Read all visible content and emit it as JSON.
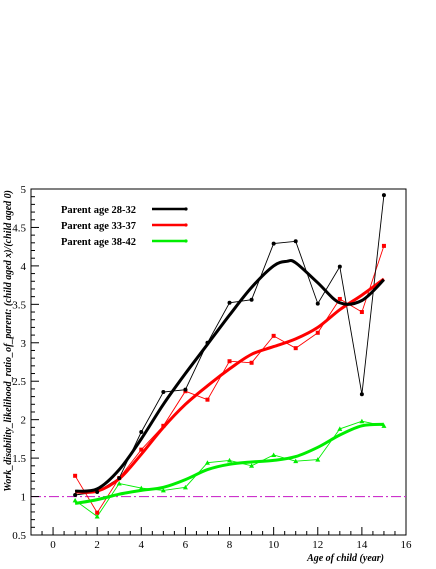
{
  "chart_data": {
    "type": "line",
    "title": "",
    "xlabel": "Age of child (year)",
    "ylabel": "Work_disability_likelihood_ratio_of_parent: (child aged x)/(child aged 0)",
    "xlim": [
      -1,
      16
    ],
    "ylim": [
      0.5,
      5
    ],
    "x_ticks": [
      "0",
      "2",
      "4",
      "6",
      "8",
      "10",
      "12",
      "14",
      "16"
    ],
    "y_ticks": [
      "0.5",
      "1",
      "1.5",
      "2",
      "2.5",
      "3",
      "3.5",
      "4",
      "4.5",
      "5"
    ],
    "legend_position": "top-left",
    "grid": false,
    "reference_line": {
      "y": 1,
      "color": "#cc33cc",
      "style": "dash-dot"
    },
    "series": [
      {
        "name": "Parent age 28-32",
        "color": "#000000",
        "marker": "circle",
        "x": [
          1,
          2,
          3,
          4,
          5,
          6,
          7,
          8,
          9,
          10,
          11,
          12,
          13,
          14,
          15
        ],
        "values": [
          1.02,
          1.06,
          1.24,
          1.84,
          2.36,
          2.39,
          3.0,
          3.52,
          3.56,
          4.29,
          4.32,
          3.51,
          3.99,
          2.33,
          4.92
        ],
        "smooth": [
          [
            1,
            1.07
          ],
          [
            2,
            1.1
          ],
          [
            3,
            1.35
          ],
          [
            4,
            1.75
          ],
          [
            5,
            2.2
          ],
          [
            6,
            2.6
          ],
          [
            7,
            2.98
          ],
          [
            8,
            3.36
          ],
          [
            9,
            3.72
          ],
          [
            10,
            4.0
          ],
          [
            10.6,
            4.06
          ],
          [
            11,
            4.04
          ],
          [
            12,
            3.78
          ],
          [
            13,
            3.52
          ],
          [
            14,
            3.55
          ],
          [
            15,
            3.82
          ]
        ]
      },
      {
        "name": "Parent age 33-37",
        "color": "#ff0000",
        "marker": "square",
        "x": [
          1,
          2,
          3,
          4,
          5,
          6,
          7,
          8,
          9,
          10,
          11,
          12,
          13,
          14,
          15
        ],
        "values": [
          1.27,
          0.79,
          1.24,
          1.61,
          1.92,
          2.37,
          2.26,
          2.76,
          2.74,
          3.09,
          2.93,
          3.13,
          3.57,
          3.4,
          4.26
        ],
        "smooth": [
          [
            1,
            1.06
          ],
          [
            2,
            1.07
          ],
          [
            3,
            1.23
          ],
          [
            4,
            1.55
          ],
          [
            5,
            1.9
          ],
          [
            6,
            2.2
          ],
          [
            7,
            2.44
          ],
          [
            8,
            2.66
          ],
          [
            9,
            2.85
          ],
          [
            10,
            2.95
          ],
          [
            11,
            3.05
          ],
          [
            12,
            3.2
          ],
          [
            13,
            3.43
          ],
          [
            14,
            3.62
          ],
          [
            15,
            3.83
          ]
        ]
      },
      {
        "name": "Parent age 38-42",
        "color": "#00ee00",
        "marker": "triangle",
        "x": [
          1,
          2,
          3,
          4,
          5,
          6,
          7,
          8,
          9,
          10,
          11,
          12,
          13,
          14,
          15
        ],
        "values": [
          0.95,
          0.74,
          1.17,
          1.11,
          1.08,
          1.12,
          1.44,
          1.47,
          1.4,
          1.54,
          1.46,
          1.48,
          1.88,
          1.98,
          1.92
        ],
        "smooth": [
          [
            1,
            0.91
          ],
          [
            2,
            0.96
          ],
          [
            3,
            1.03
          ],
          [
            4,
            1.08
          ],
          [
            5,
            1.12
          ],
          [
            6,
            1.22
          ],
          [
            7,
            1.35
          ],
          [
            8,
            1.42
          ],
          [
            9,
            1.45
          ],
          [
            10,
            1.47
          ],
          [
            11,
            1.52
          ],
          [
            12,
            1.64
          ],
          [
            13,
            1.8
          ],
          [
            14,
            1.92
          ],
          [
            15,
            1.94
          ]
        ]
      }
    ]
  }
}
